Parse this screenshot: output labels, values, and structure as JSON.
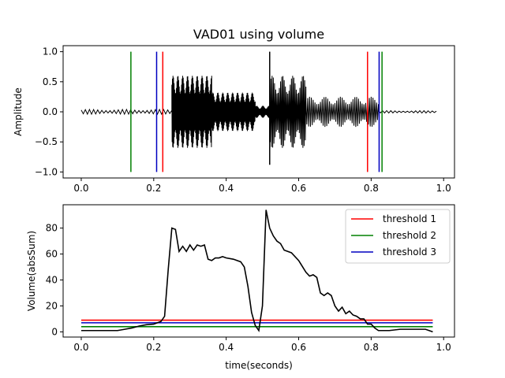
{
  "chart_data": [
    {
      "type": "line",
      "title": "VAD01 using volume",
      "xlabel": "",
      "ylabel": "Amplitude",
      "xlim": [
        -0.05,
        1.03
      ],
      "ylim": [
        -1.1,
        1.1
      ],
      "xticks": [
        "0.0",
        "0.2",
        "0.4",
        "0.6",
        "0.8",
        "1.0"
      ],
      "xtick_values": [
        0.0,
        0.2,
        0.4,
        0.6,
        0.8,
        1.0
      ],
      "yticks": [
        "−1.0",
        "−0.5",
        "0.0",
        "0.5",
        "1.0"
      ],
      "ytick_values": [
        -1.0,
        -0.5,
        0.0,
        0.5,
        1.0
      ],
      "grid": false,
      "waveform_color": "#000000",
      "waveform_segments": [
        {
          "start": 0.0,
          "end": 0.25,
          "amplitude": 0.04,
          "cycles": 22
        },
        {
          "start": 0.25,
          "end": 0.36,
          "amplitude": 0.6,
          "cycles": 70
        },
        {
          "start": 0.36,
          "end": 0.48,
          "amplitude": 0.32,
          "cycles": 75
        },
        {
          "start": 0.48,
          "end": 0.52,
          "amplitude": 0.1,
          "cycles": 20
        },
        {
          "start": 0.52,
          "end": 0.62,
          "amplitude": 0.6,
          "cycles": 30
        },
        {
          "start": 0.62,
          "end": 0.82,
          "amplitude": 0.25,
          "cycles": 40
        },
        {
          "start": 0.82,
          "end": 0.98,
          "amplitude": 0.02,
          "cycles": 14
        }
      ],
      "spike": {
        "x": 0.52,
        "ymin": -0.88,
        "ymax": 1.0
      },
      "vertical_lines": [
        {
          "x": 0.137,
          "color": "#008000"
        },
        {
          "x": 0.208,
          "color": "#0000c0"
        },
        {
          "x": 0.225,
          "color": "#ff0000"
        },
        {
          "x": 0.79,
          "color": "#ff0000"
        },
        {
          "x": 0.822,
          "color": "#0000c0"
        },
        {
          "x": 0.83,
          "color": "#008000"
        }
      ]
    },
    {
      "type": "line",
      "title": "",
      "xlabel": "time(seconds)",
      "ylabel": "Volume(absSum)",
      "xlim": [
        -0.05,
        1.03
      ],
      "ylim": [
        -4,
        98
      ],
      "xticks": [
        "0.0",
        "0.2",
        "0.4",
        "0.6",
        "0.8",
        "1.0"
      ],
      "xtick_values": [
        0.0,
        0.2,
        0.4,
        0.6,
        0.8,
        1.0
      ],
      "yticks": [
        "0",
        "20",
        "40",
        "60",
        "80"
      ],
      "ytick_values": [
        0,
        20,
        40,
        60,
        80
      ],
      "grid": false,
      "legend_position": "top-right",
      "series": [
        {
          "name": "",
          "color": "#000000",
          "x": [
            0.0,
            0.05,
            0.1,
            0.12,
            0.14,
            0.16,
            0.18,
            0.2,
            0.22,
            0.23,
            0.24,
            0.25,
            0.26,
            0.27,
            0.28,
            0.29,
            0.3,
            0.31,
            0.32,
            0.33,
            0.34,
            0.35,
            0.36,
            0.37,
            0.38,
            0.39,
            0.4,
            0.42,
            0.44,
            0.45,
            0.46,
            0.47,
            0.48,
            0.49,
            0.5,
            0.51,
            0.52,
            0.53,
            0.54,
            0.55,
            0.56,
            0.58,
            0.6,
            0.62,
            0.63,
            0.64,
            0.65,
            0.66,
            0.67,
            0.68,
            0.69,
            0.7,
            0.71,
            0.72,
            0.73,
            0.74,
            0.75,
            0.76,
            0.77,
            0.78,
            0.79,
            0.8,
            0.81,
            0.82,
            0.83,
            0.85,
            0.88,
            0.9,
            0.93,
            0.95,
            0.97
          ],
          "values": [
            1,
            1,
            1,
            2,
            3,
            4.5,
            5.5,
            6,
            8,
            12,
            48,
            80,
            79,
            62,
            66,
            62,
            67,
            63,
            67,
            66,
            67,
            56,
            55,
            57,
            57,
            58,
            57,
            56,
            54,
            50,
            35,
            15,
            5,
            1,
            20,
            94,
            80,
            74,
            70,
            68,
            63,
            61,
            55,
            46,
            43,
            44,
            42,
            30,
            28,
            30,
            28,
            20,
            16,
            19,
            14,
            16,
            13,
            12,
            10,
            10,
            6,
            6,
            3,
            1,
            1,
            1,
            2,
            2,
            2,
            2,
            0
          ]
        },
        {
          "name": "threshold 1",
          "color": "#ff0000",
          "x": [
            0.0,
            0.97
          ],
          "values": [
            9,
            9
          ]
        },
        {
          "name": "threshold 2",
          "color": "#008000",
          "x": [
            0.0,
            0.97
          ],
          "values": [
            4,
            4
          ]
        },
        {
          "name": "threshold 3",
          "color": "#0000c0",
          "x": [
            0.0,
            0.97
          ],
          "values": [
            7,
            7
          ]
        }
      ]
    }
  ]
}
